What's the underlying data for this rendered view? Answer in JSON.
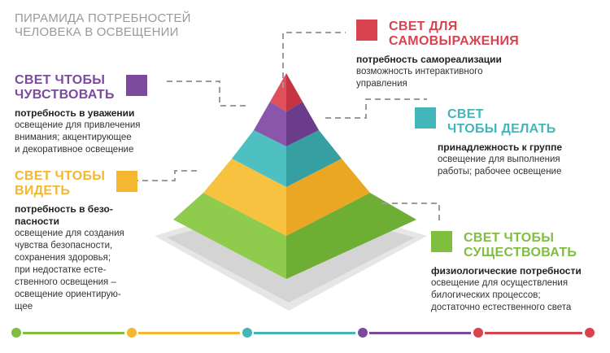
{
  "title": {
    "line1": "ПИРАМИДА ПОТРЕБНОСТЕЙ",
    "line2": "ЧЕЛОВЕКА В ОСВЕЩЕНИИ"
  },
  "colors": {
    "red": "#d9434f",
    "purple": "#7b4a9c",
    "teal": "#42b6b8",
    "yellow": "#f5b72f",
    "green": "#7fbe3e",
    "gray_text": "#9a9a9a",
    "dash": "#9b9b9b"
  },
  "levels": [
    {
      "id": "self",
      "heading": [
        "СВЕТ ДЛЯ",
        "САМОВЫРАЖЕНИЯ"
      ],
      "need": "потребность самореализации",
      "desc": [
        "возможность интерактивного",
        "управления"
      ]
    },
    {
      "id": "feel",
      "heading": [
        "СВЕТ ЧТОБЫ",
        "ЧУВСТВОВАТЬ"
      ],
      "need": "потребность в уважении",
      "desc": [
        "освещение для привлечения",
        "внимания; акцентирующее",
        "и декоративное освещение"
      ]
    },
    {
      "id": "do",
      "heading": [
        "СВЕТ",
        "ЧТОБЫ ДЕЛАТЬ"
      ],
      "need": "принадлежность к группе",
      "desc": [
        "освещение для выполнения",
        "работы; рабочее освещение"
      ]
    },
    {
      "id": "see",
      "heading": [
        "СВЕТ ЧТОБЫ",
        "ВИДЕТЬ"
      ],
      "need": [
        "потребность в безо-",
        "пасности"
      ],
      "desc": [
        "освещение для создания",
        "чувства безопасности,",
        "сохранения здоровья;",
        "при недостатке есте-",
        "ственного освещения –",
        "освещение ориентирую-",
        "щее"
      ]
    },
    {
      "id": "exist",
      "heading": [
        "СВЕТ ЧТОБЫ",
        "СУЩЕСТВОВАТЬ"
      ],
      "need": "физиологические потребности",
      "desc": [
        "освещение для осуществления",
        "билогических процессов;",
        "достаточно естественного света"
      ]
    }
  ]
}
